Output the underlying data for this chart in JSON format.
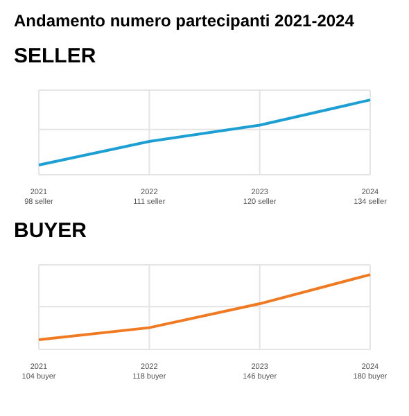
{
  "chart_data": [
    {
      "type": "line",
      "title": "Andamento numero partecipanti 2021-2024",
      "subtitle": "SELLER",
      "categories": [
        "2021",
        "2022",
        "2023",
        "2024"
      ],
      "values": [
        98,
        111,
        120,
        134
      ],
      "value_labels": [
        "98 seller",
        "111 seller",
        "120 seller",
        "134 seller"
      ],
      "color": "#1e9fd4",
      "grid": true,
      "marker": "none"
    },
    {
      "type": "line",
      "title": "BUYER",
      "categories": [
        "2021",
        "2022",
        "2023",
        "2024"
      ],
      "values": [
        104,
        118,
        146,
        180
      ],
      "value_labels": [
        "104 buyer",
        "118 buyer",
        "146 buyer",
        "180 buyer"
      ],
      "color": "#f07a22",
      "grid": true,
      "marker": "none"
    }
  ]
}
